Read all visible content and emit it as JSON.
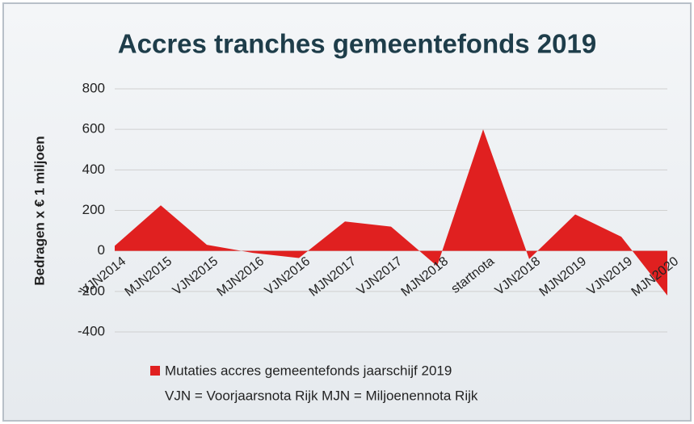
{
  "chart_data": {
    "type": "area",
    "title": "Accres tranches gemeentefonds 2019",
    "y_label": "Bedragen x € 1 miljoen",
    "categories": [
      "VJN2014",
      "MJN2015",
      "VJN2015",
      "MJN2016",
      "VJN2016",
      "MJN2017",
      "VJN2017",
      "MJN2018",
      "startnota",
      "VJN2018",
      "MJN2019",
      "VJN2019",
      "MJN2020"
    ],
    "series": [
      {
        "name": "Mutaties accres gemeentefonds jaarschijf 2019",
        "color": "#e02020",
        "values": [
          25,
          225,
          30,
          -10,
          -35,
          145,
          120,
          -75,
          600,
          -40,
          180,
          70,
          -220
        ]
      }
    ],
    "note": "VJN = Voorjaarsnota Rijk MJN = Miljoenennota Rijk",
    "ylim": [
      -400,
      800
    ],
    "yticks": [
      -400,
      -200,
      0,
      200,
      400,
      600,
      800
    ],
    "grid": true
  }
}
